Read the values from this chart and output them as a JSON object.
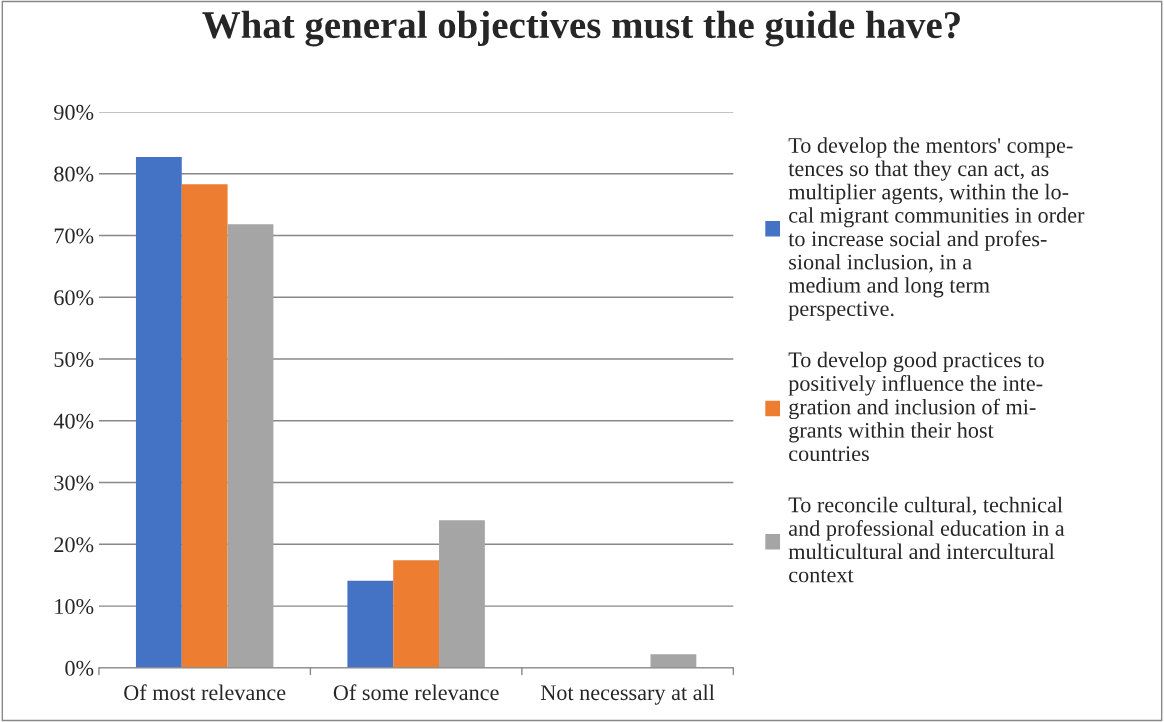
{
  "chart_data": {
    "type": "bar",
    "title": "What general objectives must the guide have?",
    "categories": [
      "Of most relevance",
      "Of some relevance",
      "Not necessary at all"
    ],
    "series": [
      {
        "name": "To develop the mentors' compe-\ntences so that they can act, as\nmultiplier agents, within the lo-\ncal migrant communities in order\nto increase social and profes-\nsional inclusion, in a\nmedium and long term\nperspective.",
        "color": "#4472c4",
        "values": [
          82.7,
          14.1,
          0
        ]
      },
      {
        "name": "To develop good practices to\npositively influence the inte-\ngration and inclusion of mi-\ngrants within their host\ncountries",
        "color": "#ed7d31",
        "values": [
          78.3,
          17.4,
          0
        ]
      },
      {
        "name": "To reconcile cultural, technical\nand professional education in a\nmulticultural and intercultural\ncontext",
        "color": "#a5a5a5",
        "values": [
          71.8,
          23.9,
          2.2
        ]
      }
    ],
    "ylim": [
      0,
      90
    ],
    "yticks": [
      {
        "value": 0,
        "label": "0%"
      },
      {
        "value": 10,
        "label": "10%"
      },
      {
        "value": 20,
        "label": "20%"
      },
      {
        "value": 30,
        "label": "30%"
      },
      {
        "value": 40,
        "label": "40%"
      },
      {
        "value": 50,
        "label": "50%"
      },
      {
        "value": 60,
        "label": "60%"
      },
      {
        "value": 70,
        "label": "70%"
      },
      {
        "value": 80,
        "label": "80%"
      },
      {
        "value": 90,
        "label": "90%"
      }
    ],
    "grid": "y",
    "legend": "right"
  }
}
